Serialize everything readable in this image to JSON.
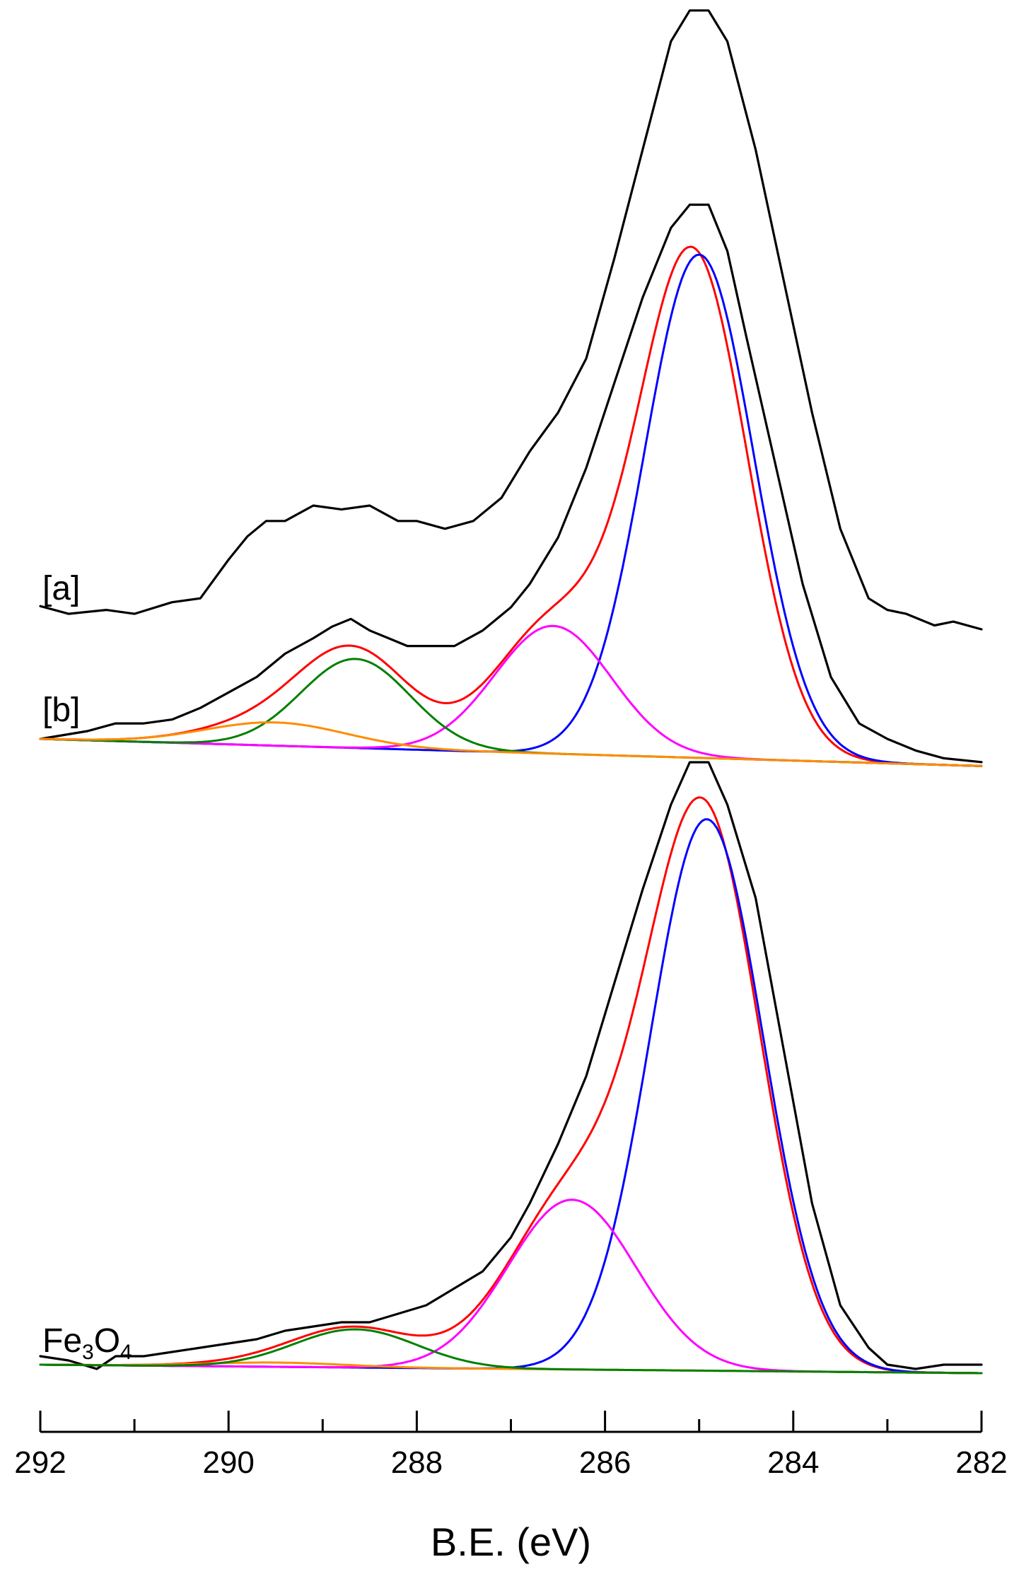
{
  "chart_data": {
    "type": "line",
    "title": "",
    "xlabel": "B.E. (eV)",
    "ylabel": "",
    "xlim": [
      292,
      282
    ],
    "x_reversed": true,
    "x_ticks": [
      292,
      290,
      288,
      286,
      284,
      282
    ],
    "x_tick_labels": [
      "292",
      "290",
      "288",
      "286",
      "284",
      "282"
    ],
    "x_minor_step": 1,
    "grid": false,
    "colors": {
      "experimental": "#000000",
      "envelope": "#ff0000",
      "c1": "#0000ff",
      "c2": "#ff00ff",
      "c3": "#008000",
      "c4": "#ff8c00"
    },
    "panels": [
      {
        "label_parts": [
          "[a]"
        ],
        "label_sub": [],
        "baseline": [
          0.0,
          -0.012
        ],
        "series": [
          {
            "name": "experimental",
            "color_key": "experimental",
            "kind": "points",
            "points": [
              [
                292,
                0.03
              ],
              [
                291.7,
                0.02
              ],
              [
                291.3,
                0.025
              ],
              [
                291,
                0.02
              ],
              [
                290.6,
                0.035
              ],
              [
                290.3,
                0.04
              ],
              [
                290,
                0.09
              ],
              [
                289.8,
                0.12
              ],
              [
                289.6,
                0.14
              ],
              [
                289.4,
                0.14
              ],
              [
                289.1,
                0.16
              ],
              [
                288.8,
                0.155
              ],
              [
                288.5,
                0.16
              ],
              [
                288.2,
                0.14
              ],
              [
                288,
                0.14
              ],
              [
                287.7,
                0.13
              ],
              [
                287.4,
                0.14
              ],
              [
                287.1,
                0.17
              ],
              [
                286.8,
                0.23
              ],
              [
                286.5,
                0.28
              ],
              [
                286.2,
                0.35
              ],
              [
                285.9,
                0.48
              ],
              [
                285.6,
                0.62
              ],
              [
                285.3,
                0.76
              ],
              [
                285.1,
                0.8
              ],
              [
                284.9,
                0.8
              ],
              [
                284.7,
                0.76
              ],
              [
                284.4,
                0.62
              ],
              [
                284.1,
                0.45
              ],
              [
                283.8,
                0.28
              ],
              [
                283.5,
                0.13
              ],
              [
                283.2,
                0.04
              ],
              [
                283,
                0.025
              ],
              [
                282.8,
                0.02
              ],
              [
                282.5,
                0.005
              ],
              [
                282.3,
                0.01
              ],
              [
                282,
                0.0
              ]
            ]
          }
        ]
      },
      {
        "label_parts": [
          "[b]"
        ],
        "label_sub": [],
        "baseline": [
          0.0,
          -0.035
        ],
        "series": [
          {
            "name": "experimental",
            "color_key": "experimental",
            "kind": "points",
            "points": [
              [
                292,
                0.0
              ],
              [
                291.5,
                0.01
              ],
              [
                291.2,
                0.02
              ],
              [
                290.9,
                0.02
              ],
              [
                290.6,
                0.025
              ],
              [
                290.3,
                0.04
              ],
              [
                290,
                0.06
              ],
              [
                289.7,
                0.08
              ],
              [
                289.4,
                0.11
              ],
              [
                289.1,
                0.13
              ],
              [
                288.9,
                0.145
              ],
              [
                288.7,
                0.155
              ],
              [
                288.5,
                0.14
              ],
              [
                288.3,
                0.13
              ],
              [
                288.1,
                0.12
              ],
              [
                287.9,
                0.12
              ],
              [
                287.6,
                0.12
              ],
              [
                287.3,
                0.14
              ],
              [
                287,
                0.17
              ],
              [
                286.8,
                0.2
              ],
              [
                286.5,
                0.26
              ],
              [
                286.2,
                0.35
              ],
              [
                285.9,
                0.46
              ],
              [
                285.6,
                0.57
              ],
              [
                285.3,
                0.66
              ],
              [
                285.1,
                0.69
              ],
              [
                284.9,
                0.69
              ],
              [
                284.7,
                0.63
              ],
              [
                284.5,
                0.52
              ],
              [
                284.2,
                0.36
              ],
              [
                283.9,
                0.2
              ],
              [
                283.6,
                0.08
              ],
              [
                283.3,
                0.02
              ],
              [
                283,
                0.0
              ],
              [
                282.7,
                -0.015
              ],
              [
                282.4,
                -0.025
              ],
              [
                282,
                -0.03
              ]
            ]
          },
          {
            "name": "envelope",
            "color_key": "envelope",
            "kind": "gaussians",
            "peaks": [
              [
                285.07,
                0.65,
                0.58
              ],
              [
                286.55,
                0.165,
                0.62
              ],
              [
                288.65,
                0.115,
                0.58
              ],
              [
                289.5,
                0.03,
                0.75
              ]
            ]
          },
          {
            "name": "C1",
            "color_key": "c1",
            "kind": "gaussians",
            "peaks": [
              [
                285.0,
                0.65,
                0.58
              ]
            ]
          },
          {
            "name": "C2",
            "color_key": "c2",
            "kind": "gaussians",
            "peaks": [
              [
                286.55,
                0.165,
                0.62
              ]
            ]
          },
          {
            "name": "C3",
            "color_key": "c3",
            "kind": "gaussians",
            "peaks": [
              [
                288.65,
                0.115,
                0.58
              ]
            ]
          },
          {
            "name": "C4",
            "color_key": "c4",
            "kind": "gaussians",
            "peaks": [
              [
                289.5,
                0.03,
                0.75
              ]
            ]
          }
        ]
      },
      {
        "label_parts": [
          "Fe",
          "3",
          "O",
          "4"
        ],
        "label_sub": [
          1,
          3
        ],
        "baseline": [
          0.0,
          -0.01
        ],
        "series": [
          {
            "name": "experimental",
            "color_key": "experimental",
            "kind": "points",
            "points": [
              [
                292,
                0.01
              ],
              [
                291.7,
                0.005
              ],
              [
                291.4,
                -0.005
              ],
              [
                291.2,
                0.01
              ],
              [
                290.9,
                0.01
              ],
              [
                290.6,
                0.015
              ],
              [
                290.3,
                0.02
              ],
              [
                290,
                0.025
              ],
              [
                289.7,
                0.03
              ],
              [
                289.4,
                0.04
              ],
              [
                289.1,
                0.045
              ],
              [
                288.8,
                0.05
              ],
              [
                288.5,
                0.05
              ],
              [
                288.2,
                0.06
              ],
              [
                287.9,
                0.07
              ],
              [
                287.6,
                0.09
              ],
              [
                287.3,
                0.11
              ],
              [
                287,
                0.15
              ],
              [
                286.8,
                0.19
              ],
              [
                286.5,
                0.26
              ],
              [
                286.2,
                0.34
              ],
              [
                285.9,
                0.45
              ],
              [
                285.6,
                0.56
              ],
              [
                285.3,
                0.66
              ],
              [
                285.1,
                0.71
              ],
              [
                284.9,
                0.71
              ],
              [
                284.7,
                0.66
              ],
              [
                284.4,
                0.55
              ],
              [
                284.1,
                0.37
              ],
              [
                283.8,
                0.19
              ],
              [
                283.5,
                0.07
              ],
              [
                283.2,
                0.02
              ],
              [
                283,
                0.0
              ],
              [
                282.7,
                -0.005
              ],
              [
                282.4,
                0.0
              ],
              [
                282,
                0.0
              ]
            ]
          },
          {
            "name": "envelope",
            "color_key": "envelope",
            "kind": "gaussians",
            "peaks": [
              [
                284.95,
                0.65,
                0.6
              ],
              [
                286.35,
                0.2,
                0.68
              ],
              [
                288.65,
                0.045,
                0.65
              ],
              [
                289.5,
                0.005,
                0.75
              ]
            ]
          },
          {
            "name": "C1",
            "color_key": "c1",
            "kind": "gaussians",
            "peaks": [
              [
                284.92,
                0.65,
                0.6
              ]
            ]
          },
          {
            "name": "C2",
            "color_key": "c2",
            "kind": "gaussians",
            "peaks": [
              [
                286.35,
                0.2,
                0.68
              ]
            ]
          },
          {
            "name": "C4",
            "color_key": "c4",
            "kind": "gaussians",
            "peaks": [
              [
                289.5,
                0.005,
                0.75
              ]
            ]
          },
          {
            "name": "C3",
            "color_key": "c3",
            "kind": "gaussians",
            "peaks": [
              [
                288.65,
                0.045,
                0.65
              ]
            ]
          }
        ]
      }
    ]
  }
}
